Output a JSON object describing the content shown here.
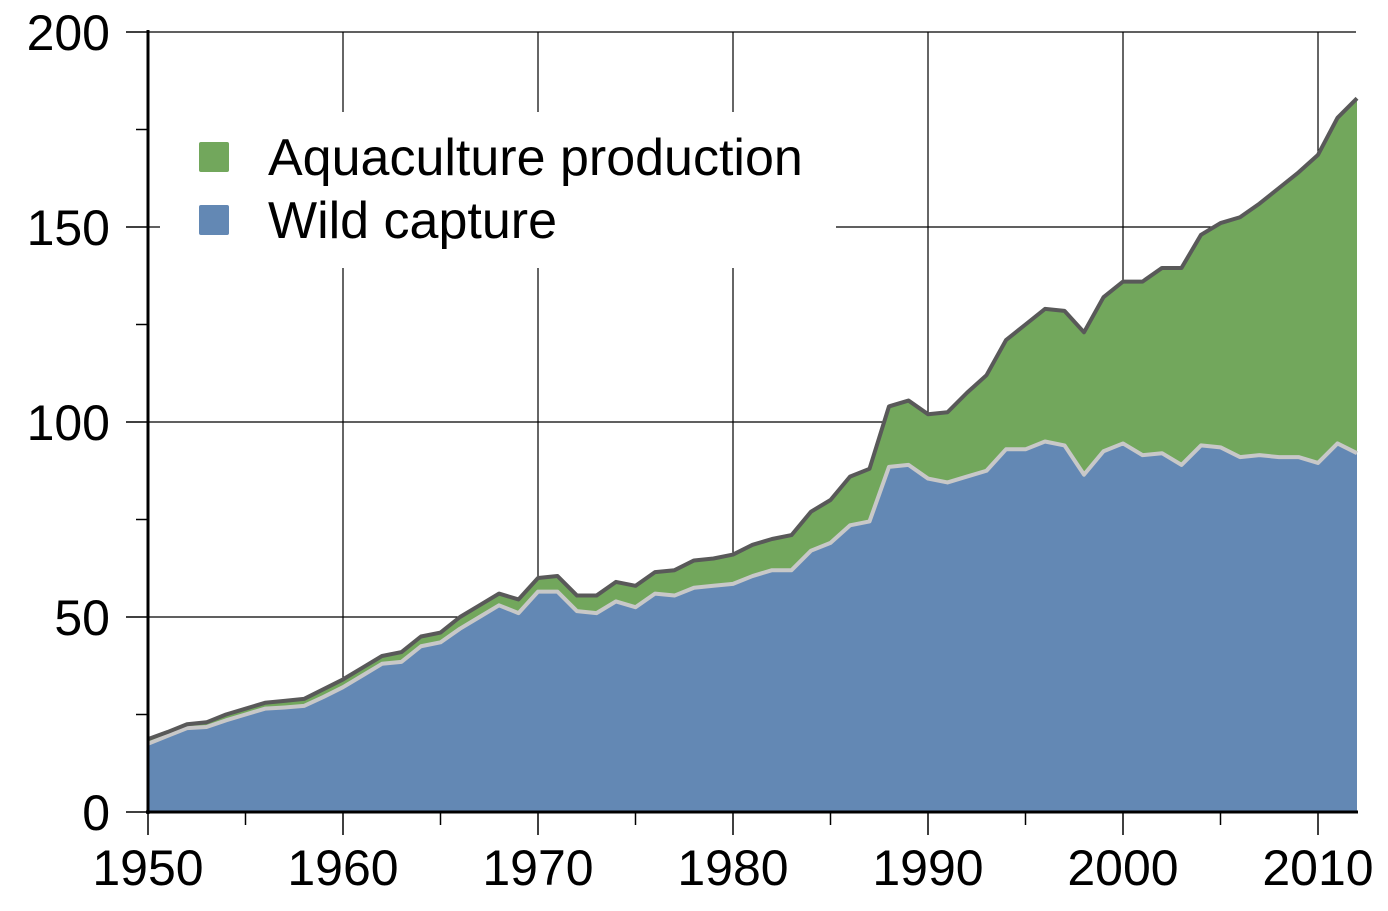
{
  "colors": {
    "aquaculture": "#72a75c",
    "wild": "#6388b4",
    "total_line": "#595959",
    "wild_line": "#c8c8c8",
    "axis": "#000000",
    "grid": "#000000"
  },
  "legend": {
    "items": [
      {
        "label": "Aquaculture production",
        "color": "#72a75c"
      },
      {
        "label": "Wild capture",
        "color": "#6388b4"
      }
    ]
  },
  "axes": {
    "x_ticks": [
      "1950",
      "1960",
      "1970",
      "1980",
      "1990",
      "2000",
      "2010"
    ],
    "y_ticks": [
      "0",
      "50",
      "100",
      "150",
      "200"
    ]
  },
  "chart_data": {
    "type": "area",
    "stacked": true,
    "title": "",
    "xlabel": "",
    "ylabel": "",
    "xlim": [
      1950,
      2012
    ],
    "ylim": [
      0,
      200
    ],
    "x_tick_values": [
      1950,
      1960,
      1970,
      1980,
      1990,
      2000,
      2010
    ],
    "y_tick_values": [
      0,
      50,
      100,
      150,
      200
    ],
    "y_minor_ticks": [
      25,
      75,
      125,
      175
    ],
    "x_minor_ticks": [
      1955,
      1965,
      1975,
      1985,
      1995,
      2005
    ],
    "grid": true,
    "legend_position": "upper left",
    "x": [
      1950,
      1951,
      1952,
      1953,
      1954,
      1955,
      1956,
      1957,
      1958,
      1959,
      1960,
      1961,
      1962,
      1963,
      1964,
      1965,
      1966,
      1967,
      1968,
      1969,
      1970,
      1971,
      1972,
      1973,
      1974,
      1975,
      1976,
      1977,
      1978,
      1979,
      1980,
      1981,
      1982,
      1983,
      1984,
      1985,
      1986,
      1987,
      1988,
      1989,
      1990,
      1991,
      1992,
      1993,
      1994,
      1995,
      1996,
      1997,
      1998,
      1999,
      2000,
      2001,
      2002,
      2003,
      2004,
      2005,
      2006,
      2007,
      2008,
      2009,
      2010,
      2011,
      2012
    ],
    "series": [
      {
        "name": "Wild capture",
        "values": [
          17.5,
          19.5,
          21.5,
          21.8,
          23.5,
          25,
          26.5,
          26.8,
          27.2,
          29.5,
          32,
          35,
          38,
          38.5,
          42.5,
          43.5,
          47,
          50,
          53,
          51,
          56.5,
          56.5,
          51.5,
          51,
          54,
          52.5,
          56,
          55.5,
          57.5,
          58,
          58.5,
          60.5,
          62,
          62,
          67,
          69,
          73.5,
          74.5,
          88.5,
          89,
          85.5,
          84.5,
          86,
          87.5,
          93,
          93,
          95,
          94,
          86.5,
          92.5,
          94.5,
          91.5,
          92,
          89,
          94,
          93.5,
          91,
          91.5,
          91,
          91,
          89.5,
          94.5,
          92
        ]
      },
      {
        "name": "Aquaculture production",
        "values": [
          1.2,
          1,
          1,
          1.2,
          1.5,
          1.5,
          1.5,
          1.7,
          1.8,
          2,
          2,
          2,
          2,
          2.5,
          2.5,
          2.5,
          3,
          3,
          3,
          3.5,
          3.5,
          4,
          4,
          4.5,
          5,
          5.5,
          5.5,
          6.5,
          7,
          7,
          7.5,
          8,
          8,
          9,
          10,
          11,
          12.5,
          13.5,
          15.5,
          16.5,
          16.5,
          18,
          21.5,
          24.5,
          28,
          32,
          34,
          34.5,
          36.5,
          39.5,
          41.5,
          44.5,
          47.5,
          50.5,
          54,
          57.5,
          61.5,
          64.5,
          69,
          73,
          79,
          83.5,
          91
        ]
      }
    ],
    "totals": [
      18.7,
      20.5,
      22.5,
      23,
      25,
      26.5,
      28,
      28.5,
      29,
      31.5,
      34,
      37,
      40,
      41,
      45,
      46,
      50,
      53,
      56,
      54.5,
      60,
      60.5,
      55.5,
      55.5,
      59,
      58,
      61.5,
      62,
      64.5,
      65,
      66,
      68.5,
      70,
      71,
      77,
      80,
      86,
      88,
      104,
      105.5,
      102,
      102.5,
      107.5,
      112,
      121,
      125,
      129,
      128.5,
      123,
      132,
      136,
      136,
      139.5,
      139.5,
      148,
      151,
      152.5,
      156,
      160,
      164,
      168.5,
      178,
      183
    ]
  }
}
